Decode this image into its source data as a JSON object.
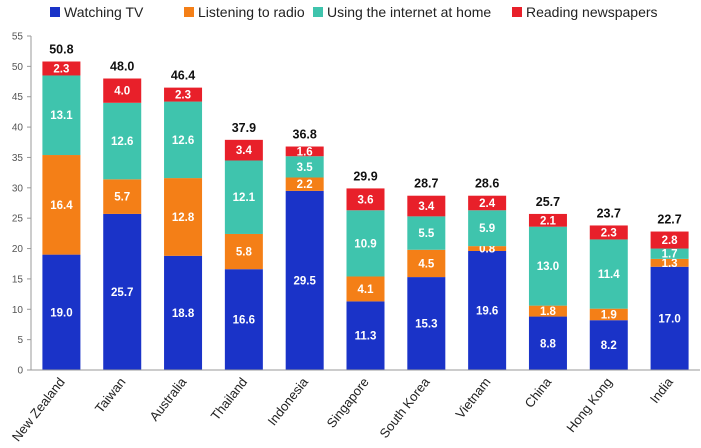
{
  "chart_data": {
    "type": "bar",
    "stacked": true,
    "categories": [
      "New Zealand",
      "Taiwan",
      "Australia",
      "Thailand",
      "Indonesia",
      "Singapore",
      "South Korea",
      "Vietnam",
      "China",
      "Hong Kong",
      "India"
    ],
    "series": [
      {
        "name": "Watching TV",
        "color": "#1a33c8",
        "values": [
          19.0,
          25.7,
          18.8,
          16.6,
          29.5,
          11.3,
          15.3,
          19.6,
          8.8,
          8.2,
          17.0
        ]
      },
      {
        "name": "Listening to radio",
        "color": "#f47f17",
        "values": [
          16.4,
          5.7,
          12.8,
          5.8,
          2.2,
          4.1,
          4.5,
          0.8,
          1.8,
          1.9,
          1.3
        ]
      },
      {
        "name": "Using the internet at home",
        "color": "#3fc4ad",
        "values": [
          13.1,
          12.6,
          12.6,
          12.1,
          3.5,
          10.9,
          5.5,
          5.9,
          13.0,
          11.4,
          1.7
        ]
      },
      {
        "name": "Reading newspapers",
        "color": "#e8202a",
        "values": [
          2.3,
          4.0,
          2.3,
          3.4,
          1.6,
          3.6,
          3.4,
          2.4,
          2.1,
          2.3,
          2.8
        ]
      }
    ],
    "totals": [
      "50.8",
      "48.0",
      "46.4",
      "37.9",
      "36.8",
      "29.9",
      "28.7",
      "28.6",
      "25.7",
      "23.7",
      "22.7"
    ],
    "ylim": [
      0,
      55
    ],
    "yticks": [
      0,
      5,
      10,
      15,
      20,
      25,
      30,
      35,
      40,
      45,
      50,
      55
    ],
    "legend_position": "top",
    "grid": false
  }
}
